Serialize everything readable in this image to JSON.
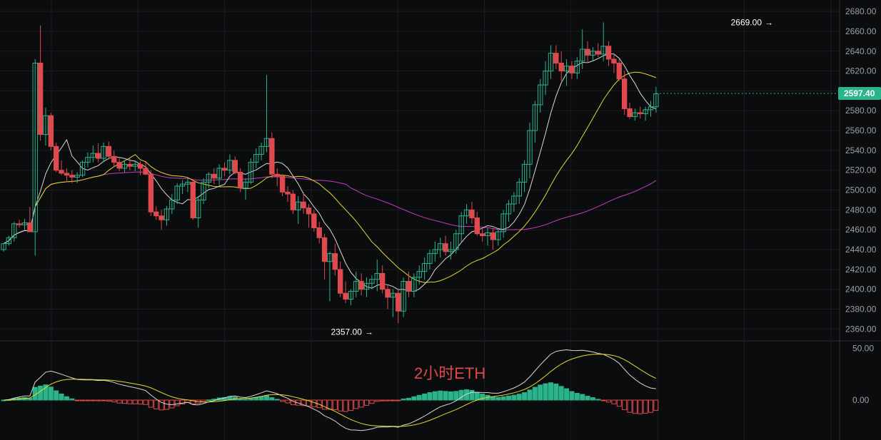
{
  "chart_data": [
    {
      "type": "candlestick",
      "title": "",
      "price_axis": {
        "ticks": [
          "2680.00",
          "2660.00",
          "2640.00",
          "2620.00",
          "2600.00",
          "2580.00",
          "2560.00",
          "2540.00",
          "2520.00",
          "2500.00",
          "2480.00",
          "2460.00",
          "2440.00",
          "2420.00",
          "2400.00",
          "2380.00",
          "2360.00"
        ],
        "range": [
          2348,
          2688
        ]
      },
      "last_price": {
        "label": "2597.40",
        "value": 2597.4,
        "color": "#2bb38b"
      },
      "annotations": {
        "high": {
          "label": "2669.00",
          "value": 2669,
          "index": 146
        },
        "low": {
          "label": "2357.00",
          "value": 2357,
          "index": 70
        }
      },
      "colors": {
        "up": "#2bb38b",
        "down": "#e0494e",
        "ma_fast": "#d8d8d8",
        "ma_mid": "#e6d82e",
        "ma_slow": "#c83bc0",
        "background": "#0b0c0e",
        "grid": "#1b1d21"
      },
      "candles_ohlc": [
        [
          2440,
          2446,
          2438,
          2446
        ],
        [
          2446,
          2454,
          2444,
          2452
        ],
        [
          2452,
          2468,
          2448,
          2466
        ],
        [
          2466,
          2470,
          2462,
          2465
        ],
        [
          2465,
          2471,
          2460,
          2467
        ],
        [
          2467,
          2483,
          2458,
          2458
        ],
        [
          2458,
          2632,
          2434,
          2628
        ],
        [
          2628,
          2666,
          2550,
          2556
        ],
        [
          2556,
          2583,
          2545,
          2575
        ],
        [
          2575,
          2578,
          2540,
          2544
        ],
        [
          2544,
          2548,
          2518,
          2520
        ],
        [
          2520,
          2530,
          2515,
          2517
        ],
        [
          2517,
          2522,
          2508,
          2515
        ],
        [
          2515,
          2520,
          2507,
          2513
        ],
        [
          2513,
          2518,
          2507,
          2515
        ],
        [
          2515,
          2530,
          2513,
          2528
        ],
        [
          2528,
          2538,
          2523,
          2533
        ],
        [
          2533,
          2545,
          2528,
          2537
        ],
        [
          2537,
          2547,
          2528,
          2532
        ],
        [
          2532,
          2548,
          2528,
          2544
        ],
        [
          2544,
          2549,
          2531,
          2534
        ],
        [
          2534,
          2540,
          2524,
          2528
        ],
        [
          2528,
          2532,
          2519,
          2522
        ],
        [
          2522,
          2530,
          2518,
          2526
        ],
        [
          2526,
          2532,
          2520,
          2524
        ],
        [
          2524,
          2530,
          2519,
          2526
        ],
        [
          2526,
          2529,
          2515,
          2522
        ],
        [
          2522,
          2528,
          2515,
          2516
        ],
        [
          2516,
          2520,
          2474,
          2478
        ],
        [
          2478,
          2484,
          2470,
          2474
        ],
        [
          2474,
          2480,
          2460,
          2470
        ],
        [
          2470,
          2484,
          2464,
          2481
        ],
        [
          2481,
          2496,
          2476,
          2490
        ],
        [
          2490,
          2507,
          2486,
          2504
        ],
        [
          2504,
          2510,
          2496,
          2506
        ],
        [
          2506,
          2512,
          2498,
          2508
        ],
        [
          2508,
          2511,
          2470,
          2472
        ],
        [
          2472,
          2494,
          2462,
          2490
        ],
        [
          2490,
          2512,
          2486,
          2508
        ],
        [
          2508,
          2518,
          2502,
          2516
        ],
        [
          2516,
          2522,
          2506,
          2512
        ],
        [
          2512,
          2526,
          2505,
          2522
        ],
        [
          2522,
          2528,
          2514,
          2520
        ],
        [
          2520,
          2536,
          2516,
          2530
        ],
        [
          2530,
          2534,
          2516,
          2518
        ],
        [
          2518,
          2522,
          2498,
          2502
        ],
        [
          2502,
          2512,
          2490,
          2508
        ],
        [
          2508,
          2532,
          2506,
          2528
        ],
        [
          2528,
          2542,
          2522,
          2536
        ],
        [
          2536,
          2548,
          2530,
          2544
        ],
        [
          2544,
          2616,
          2538,
          2552
        ],
        [
          2552,
          2558,
          2512,
          2516
        ],
        [
          2516,
          2522,
          2504,
          2514
        ],
        [
          2514,
          2516,
          2494,
          2498
        ],
        [
          2498,
          2504,
          2488,
          2496
        ],
        [
          2496,
          2500,
          2476,
          2480
        ],
        [
          2480,
          2494,
          2466,
          2488
        ],
        [
          2488,
          2498,
          2476,
          2482
        ],
        [
          2482,
          2486,
          2462,
          2476
        ],
        [
          2476,
          2480,
          2458,
          2462
        ],
        [
          2462,
          2468,
          2446,
          2452
        ],
        [
          2452,
          2456,
          2410,
          2428
        ],
        [
          2428,
          2438,
          2388,
          2436
        ],
        [
          2436,
          2446,
          2414,
          2420
        ],
        [
          2420,
          2428,
          2392,
          2396
        ],
        [
          2396,
          2408,
          2386,
          2390
        ],
        [
          2390,
          2400,
          2384,
          2398
        ],
        [
          2398,
          2418,
          2392,
          2408
        ],
        [
          2408,
          2416,
          2394,
          2400
        ],
        [
          2400,
          2412,
          2392,
          2406
        ],
        [
          2406,
          2414,
          2400,
          2410
        ],
        [
          2410,
          2430,
          2398,
          2416
        ],
        [
          2416,
          2424,
          2396,
          2400
        ],
        [
          2400,
          2404,
          2380,
          2392
        ],
        [
          2392,
          2400,
          2372,
          2396
        ],
        [
          2396,
          2400,
          2366,
          2378
        ],
        [
          2378,
          2412,
          2372,
          2408
        ],
        [
          2408,
          2418,
          2392,
          2398
        ],
        [
          2398,
          2416,
          2392,
          2412
        ],
        [
          2412,
          2424,
          2405,
          2418
        ],
        [
          2418,
          2432,
          2410,
          2426
        ],
        [
          2426,
          2440,
          2420,
          2436
        ],
        [
          2436,
          2448,
          2428,
          2440
        ],
        [
          2440,
          2452,
          2432,
          2446
        ],
        [
          2446,
          2454,
          2434,
          2438
        ],
        [
          2438,
          2448,
          2430,
          2440
        ],
        [
          2440,
          2460,
          2436,
          2456
        ],
        [
          2456,
          2478,
          2448,
          2474
        ],
        [
          2474,
          2486,
          2466,
          2480
        ],
        [
          2480,
          2488,
          2466,
          2472
        ],
        [
          2472,
          2478,
          2454,
          2456
        ],
        [
          2456,
          2462,
          2448,
          2454
        ],
        [
          2454,
          2462,
          2444,
          2457
        ],
        [
          2457,
          2462,
          2440,
          2450
        ],
        [
          2450,
          2460,
          2444,
          2458
        ],
        [
          2458,
          2480,
          2452,
          2476
        ],
        [
          2476,
          2490,
          2468,
          2486
        ],
        [
          2486,
          2498,
          2478,
          2494
        ],
        [
          2494,
          2512,
          2486,
          2508
        ],
        [
          2508,
          2530,
          2498,
          2526
        ],
        [
          2526,
          2568,
          2512,
          2560
        ],
        [
          2560,
          2590,
          2548,
          2586
        ],
        [
          2586,
          2612,
          2578,
          2606
        ],
        [
          2606,
          2630,
          2596,
          2620
        ],
        [
          2620,
          2646,
          2612,
          2638
        ],
        [
          2638,
          2646,
          2622,
          2628
        ],
        [
          2628,
          2640,
          2610,
          2620
        ],
        [
          2620,
          2632,
          2605,
          2625
        ],
        [
          2625,
          2630,
          2612,
          2618
        ],
        [
          2618,
          2634,
          2612,
          2630
        ],
        [
          2630,
          2662,
          2622,
          2642
        ],
        [
          2642,
          2650,
          2628,
          2636
        ],
        [
          2636,
          2644,
          2630,
          2640
        ],
        [
          2640,
          2648,
          2634,
          2637
        ],
        [
          2637,
          2669,
          2630,
          2645
        ],
        [
          2645,
          2650,
          2625,
          2632
        ],
        [
          2632,
          2638,
          2618,
          2628
        ],
        [
          2628,
          2632,
          2610,
          2612
        ],
        [
          2612,
          2620,
          2576,
          2582
        ],
        [
          2582,
          2588,
          2572,
          2574
        ],
        [
          2574,
          2582,
          2570,
          2578
        ],
        [
          2578,
          2584,
          2572,
          2577
        ],
        [
          2577,
          2584,
          2570,
          2581
        ],
        [
          2581,
          2590,
          2574,
          2584
        ],
        [
          2584,
          2604,
          2578,
          2597
        ]
      ]
    },
    {
      "type": "histogram",
      "title": "2小时ETH",
      "axis": {
        "ticks": [
          "50.00",
          "0.00"
        ],
        "range": [
          -38,
          56
        ]
      }
    }
  ]
}
